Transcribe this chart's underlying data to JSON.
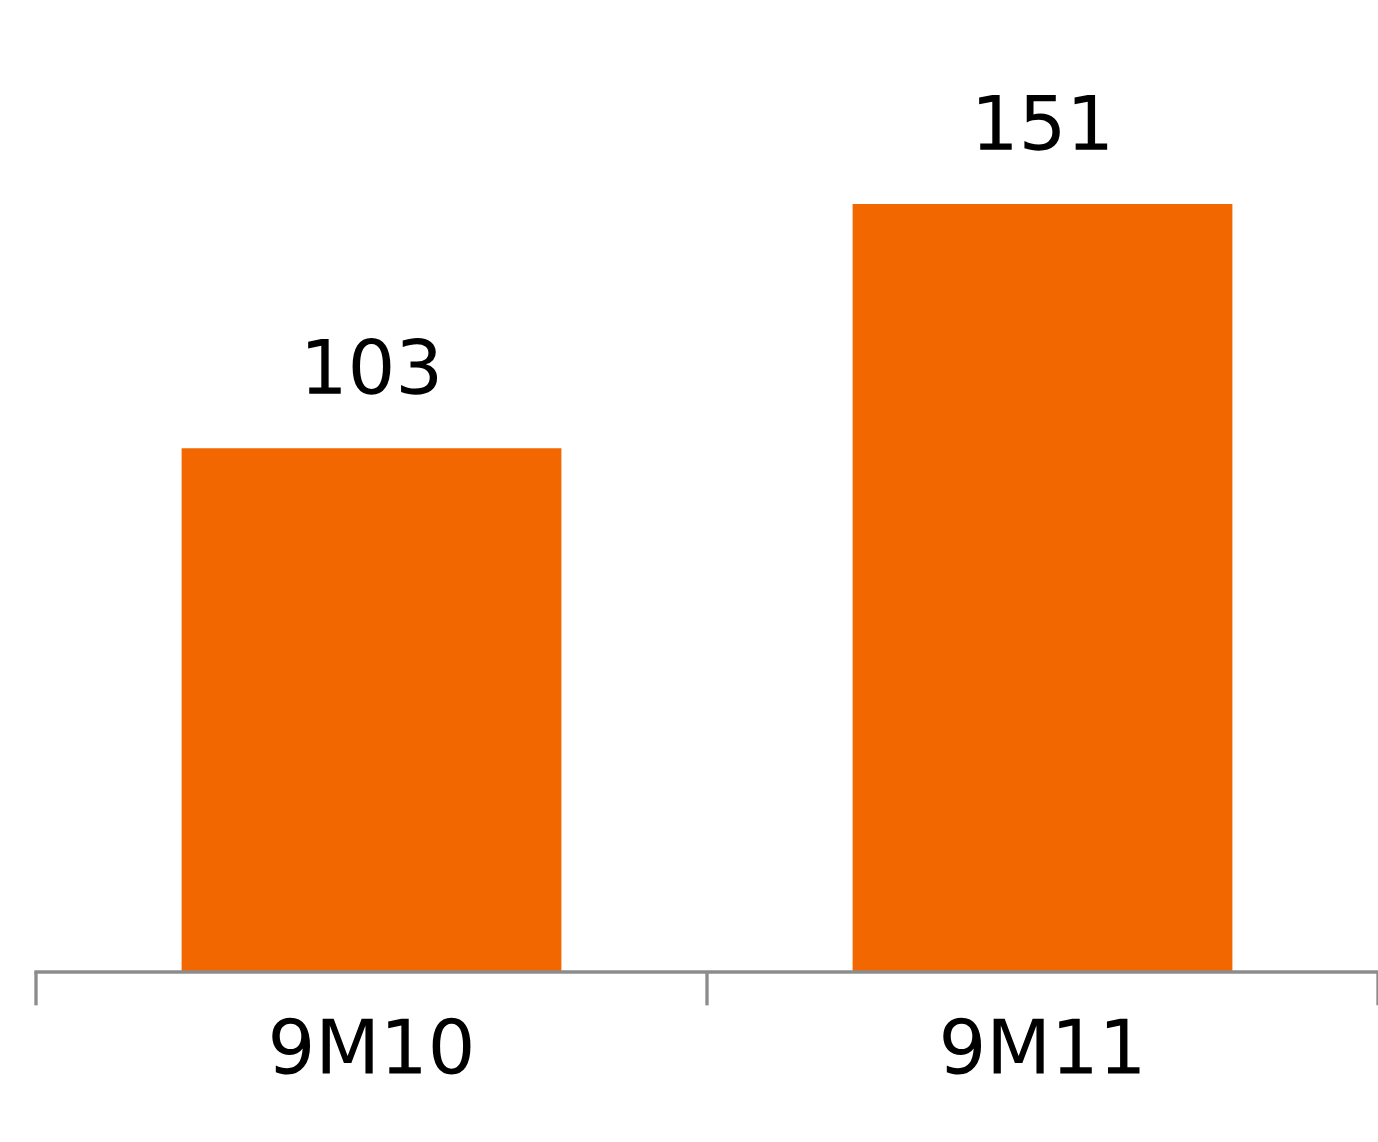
{
  "chart_data": {
    "type": "bar",
    "categories": [
      "9M10",
      "9M11"
    ],
    "values": [
      103,
      151
    ],
    "color": "#f26700",
    "data_labels": true,
    "grid": false,
    "legend": false,
    "tick_labels": "x"
  }
}
